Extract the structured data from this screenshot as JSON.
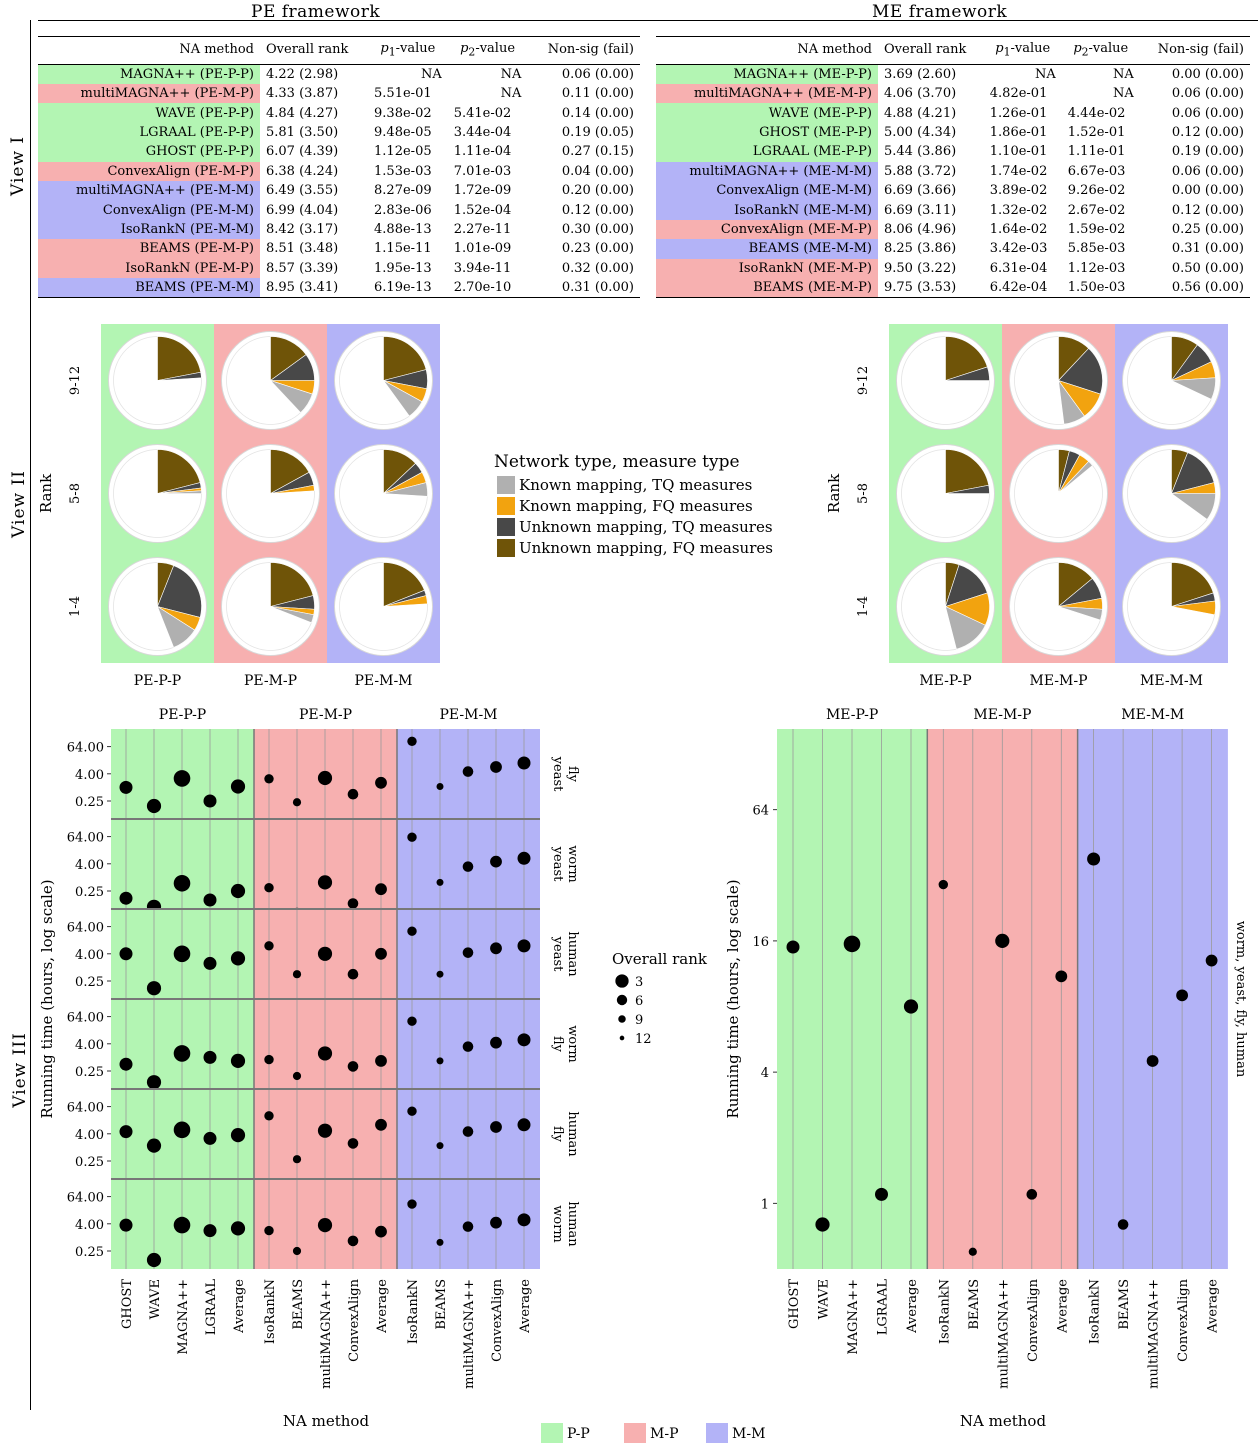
{
  "frameworks": {
    "left": "PE framework",
    "right": "ME framework"
  },
  "view_labels": [
    "View I",
    "View II",
    "View III"
  ],
  "table_columns": [
    "NA method",
    "Overall rank",
    "p1-value",
    "p2-value",
    "Non-sig (fail)"
  ],
  "colors": {
    "P-P": "#b3f5b3",
    "M-P": "#f7b0b0",
    "M-M": "#b3b3f7",
    "known_tq": "#b0b0b0",
    "known_fq": "#f2a30f",
    "unknown_tq": "#484848",
    "unknown_fq": "#6f5408"
  },
  "pe_table": [
    {
      "method": "MAGNA++ (PE-P-P)",
      "rank": "4.22 (2.98)",
      "p1": "NA",
      "p2": "NA",
      "nonsig": "0.06 (0.00)",
      "group": "P-P"
    },
    {
      "method": "multiMAGNA++ (PE-M-P)",
      "rank": "4.33 (3.87)",
      "p1": "5.51e-01",
      "p2": "NA",
      "nonsig": "0.11 (0.00)",
      "group": "M-P"
    },
    {
      "method": "WAVE (PE-P-P)",
      "rank": "4.84 (4.27)",
      "p1": "9.38e-02",
      "p2": "5.41e-02",
      "nonsig": "0.14 (0.00)",
      "group": "P-P"
    },
    {
      "method": "LGRAAL (PE-P-P)",
      "rank": "5.81 (3.50)",
      "p1": "9.48e-05",
      "p2": "3.44e-04",
      "nonsig": "0.19 (0.05)",
      "group": "P-P"
    },
    {
      "method": "GHOST (PE-P-P)",
      "rank": "6.07 (4.39)",
      "p1": "1.12e-05",
      "p2": "1.11e-04",
      "nonsig": "0.27 (0.15)",
      "group": "P-P"
    },
    {
      "method": "ConvexAlign (PE-M-P)",
      "rank": "6.38 (4.24)",
      "p1": "1.53e-03",
      "p2": "7.01e-03",
      "nonsig": "0.04 (0.00)",
      "group": "M-P"
    },
    {
      "method": "multiMAGNA++ (PE-M-M)",
      "rank": "6.49 (3.55)",
      "p1": "8.27e-09",
      "p2": "1.72e-09",
      "nonsig": "0.20 (0.00)",
      "group": "M-M"
    },
    {
      "method": "ConvexAlign (PE-M-M)",
      "rank": "6.99 (4.04)",
      "p1": "2.83e-06",
      "p2": "1.52e-04",
      "nonsig": "0.12 (0.00)",
      "group": "M-M"
    },
    {
      "method": "IsoRankN (PE-M-M)",
      "rank": "8.42 (3.17)",
      "p1": "4.88e-13",
      "p2": "2.27e-11",
      "nonsig": "0.30 (0.00)",
      "group": "M-M"
    },
    {
      "method": "BEAMS (PE-M-P)",
      "rank": "8.51 (3.48)",
      "p1": "1.15e-11",
      "p2": "1.01e-09",
      "nonsig": "0.23 (0.00)",
      "group": "M-P"
    },
    {
      "method": "IsoRankN (PE-M-P)",
      "rank": "8.57 (3.39)",
      "p1": "1.95e-13",
      "p2": "3.94e-11",
      "nonsig": "0.32 (0.00)",
      "group": "M-P"
    },
    {
      "method": "BEAMS (PE-M-M)",
      "rank": "8.95 (3.41)",
      "p1": "6.19e-13",
      "p2": "2.70e-10",
      "nonsig": "0.31 (0.00)",
      "group": "M-M"
    }
  ],
  "me_table": [
    {
      "method": "MAGNA++ (ME-P-P)",
      "rank": "3.69 (2.60)",
      "p1": "NA",
      "p2": "NA",
      "nonsig": "0.00 (0.00)",
      "group": "P-P"
    },
    {
      "method": "multiMAGNA++ (ME-M-P)",
      "rank": "4.06 (3.70)",
      "p1": "4.82e-01",
      "p2": "NA",
      "nonsig": "0.06 (0.00)",
      "group": "M-P"
    },
    {
      "method": "WAVE (ME-P-P)",
      "rank": "4.88 (4.21)",
      "p1": "1.26e-01",
      "p2": "4.44e-02",
      "nonsig": "0.06 (0.00)",
      "group": "P-P"
    },
    {
      "method": "GHOST (ME-P-P)",
      "rank": "5.00 (4.34)",
      "p1": "1.86e-01",
      "p2": "1.52e-01",
      "nonsig": "0.12 (0.00)",
      "group": "P-P"
    },
    {
      "method": "LGRAAL (ME-P-P)",
      "rank": "5.44 (3.86)",
      "p1": "1.10e-01",
      "p2": "1.11e-01",
      "nonsig": "0.19 (0.00)",
      "group": "P-P"
    },
    {
      "method": "multiMAGNA++ (ME-M-M)",
      "rank": "5.88 (3.72)",
      "p1": "1.74e-02",
      "p2": "6.67e-03",
      "nonsig": "0.06 (0.00)",
      "group": "M-M"
    },
    {
      "method": "ConvexAlign (ME-M-M)",
      "rank": "6.69 (3.66)",
      "p1": "3.89e-02",
      "p2": "9.26e-02",
      "nonsig": "0.00 (0.00)",
      "group": "M-M"
    },
    {
      "method": "IsoRankN (ME-M-M)",
      "rank": "6.69 (3.11)",
      "p1": "1.32e-02",
      "p2": "2.67e-02",
      "nonsig": "0.12 (0.00)",
      "group": "M-M"
    },
    {
      "method": "ConvexAlign (ME-M-P)",
      "rank": "8.06 (4.96)",
      "p1": "1.64e-02",
      "p2": "1.59e-02",
      "nonsig": "0.25 (0.00)",
      "group": "M-P"
    },
    {
      "method": "BEAMS (ME-M-M)",
      "rank": "8.25 (3.86)",
      "p1": "3.42e-03",
      "p2": "5.85e-03",
      "nonsig": "0.31 (0.00)",
      "group": "M-M"
    },
    {
      "method": "IsoRankN (ME-M-P)",
      "rank": "9.50 (3.22)",
      "p1": "6.31e-04",
      "p2": "1.12e-03",
      "nonsig": "0.50 (0.00)",
      "group": "M-P"
    },
    {
      "method": "BEAMS (ME-M-P)",
      "rank": "9.75 (3.53)",
      "p1": "6.42e-04",
      "p2": "1.50e-03",
      "nonsig": "0.56 (0.00)",
      "group": "M-P"
    }
  ],
  "chart_data": [
    {
      "type": "pie",
      "panel": "View II PE framework",
      "ylabel": "Rank",
      "rows": [
        "9-12",
        "5-8",
        "1-4"
      ],
      "columns": [
        "PE-P-P",
        "PE-M-P",
        "PE-M-M"
      ],
      "slice_order": [
        "Unknown mapping, FQ measures",
        "Unknown mapping, TQ measures",
        "Known mapping, FQ measures",
        "Known mapping, TQ measures"
      ],
      "fractions": {
        "9-12": {
          "PE-P-P": [
            0.22,
            0.02,
            0.0,
            0.0
          ],
          "PE-M-P": [
            0.15,
            0.1,
            0.05,
            0.08
          ],
          "PE-M-M": [
            0.21,
            0.07,
            0.05,
            0.07
          ]
        },
        "5-8": {
          "PE-P-P": [
            0.21,
            0.02,
            0.01,
            0.01
          ],
          "PE-M-P": [
            0.17,
            0.05,
            0.02,
            0.0
          ],
          "PE-M-M": [
            0.13,
            0.04,
            0.04,
            0.05
          ]
        },
        "1-4": {
          "PE-P-P": [
            0.06,
            0.23,
            0.05,
            0.1
          ],
          "PE-M-P": [
            0.21,
            0.05,
            0.02,
            0.03
          ],
          "PE-M-M": [
            0.19,
            0.02,
            0.03,
            0.0
          ]
        }
      }
    },
    {
      "type": "pie",
      "panel": "View II ME framework",
      "ylabel": "Rank",
      "rows": [
        "9-12",
        "5-8",
        "1-4"
      ],
      "columns": [
        "ME-P-P",
        "ME-M-P",
        "ME-M-M"
      ],
      "slice_order": [
        "Unknown mapping, FQ measures",
        "Unknown mapping, TQ measures",
        "Known mapping, FQ measures",
        "Known mapping, TQ measures"
      ],
      "fractions": {
        "9-12": {
          "ME-P-P": [
            0.2,
            0.05,
            0.0,
            0.0
          ],
          "ME-M-P": [
            0.12,
            0.18,
            0.1,
            0.08
          ],
          "ME-M-M": [
            0.1,
            0.08,
            0.06,
            0.08
          ]
        },
        "5-8": {
          "ME-P-P": [
            0.22,
            0.03,
            0.0,
            0.0
          ],
          "ME-M-P": [
            0.04,
            0.04,
            0.04,
            0.02
          ],
          "ME-M-M": [
            0.06,
            0.15,
            0.04,
            0.1
          ]
        },
        "1-4": {
          "ME-P-P": [
            0.05,
            0.15,
            0.12,
            0.14
          ],
          "ME-M-P": [
            0.14,
            0.08,
            0.04,
            0.04
          ],
          "ME-M-M": [
            0.2,
            0.03,
            0.05,
            0.0
          ]
        }
      }
    },
    {
      "type": "scatter",
      "panel": "View III PE framework",
      "xlabel": "NA method",
      "ylabel": "Running time (hours, log scale)",
      "yscale": "log2",
      "yticks": [
        0.25,
        4,
        64
      ],
      "ytick_labels": [
        "0.25",
        "4.00",
        "64.00"
      ],
      "ylim": [
        0.06,
        256
      ],
      "groups": [
        {
          "label": "PE-P-P",
          "color_key": "P-P",
          "methods": [
            "GHOST",
            "WAVE",
            "MAGNA++",
            "LGRAAL",
            "Average"
          ]
        },
        {
          "label": "PE-M-P",
          "color_key": "M-P",
          "methods": [
            "IsoRankN",
            "BEAMS",
            "multiMAGNA++",
            "ConvexAlign",
            "Average"
          ]
        },
        {
          "label": "PE-M-M",
          "color_key": "M-M",
          "methods": [
            "IsoRankN",
            "BEAMS",
            "multiMAGNA++",
            "ConvexAlign",
            "Average"
          ]
        }
      ],
      "facets": [
        {
          "label": "yeast fly",
          "values": [
            [
              1.0,
              0.15,
              2.5,
              0.25,
              1.1
            ],
            [
              2.4,
              0.22,
              2.6,
              0.5,
              1.6
            ],
            [
              110,
              1.1,
              5.0,
              8.0,
              12
            ]
          ],
          "ranks": [
            [
              6,
              5,
              3,
              6,
              5
            ],
            [
              9,
              10,
              5,
              8,
              7
            ],
            [
              9,
              11,
              8,
              7,
              6
            ]
          ]
        },
        {
          "label": "yeast worm",
          "values": [
            [
              0.12,
              0.05,
              0.55,
              0.1,
              0.25
            ],
            [
              0.35,
              0.03,
              0.6,
              0.07,
              0.3
            ],
            [
              60,
              0.6,
              3.0,
              5.0,
              7.0
            ]
          ],
          "ranks": [
            [
              6,
              5,
              3,
              6,
              5
            ],
            [
              9,
              10,
              5,
              8,
              7
            ],
            [
              9,
              11,
              8,
              7,
              6
            ]
          ]
        },
        {
          "label": "yeast human",
          "values": [
            [
              4.0,
              0.12,
              4.0,
              1.5,
              2.5
            ],
            [
              9.0,
              0.5,
              4.0,
              0.5,
              4.0
            ],
            [
              40,
              0.5,
              4.5,
              7.0,
              9.0
            ]
          ],
          "ranks": [
            [
              6,
              5,
              3,
              6,
              5
            ],
            [
              9,
              10,
              5,
              8,
              7
            ],
            [
              9,
              11,
              8,
              7,
              6
            ]
          ]
        },
        {
          "label": "fly worm",
          "values": [
            [
              0.5,
              0.08,
              1.5,
              1.0,
              0.7
            ],
            [
              0.8,
              0.15,
              1.5,
              0.4,
              0.7
            ],
            [
              40,
              0.7,
              3.0,
              4.5,
              6.0
            ]
          ],
          "ranks": [
            [
              6,
              5,
              3,
              6,
              5
            ],
            [
              9,
              10,
              5,
              8,
              7
            ],
            [
              9,
              11,
              8,
              7,
              6
            ]
          ]
        },
        {
          "label": "fly human",
          "values": [
            [
              5.0,
              1.2,
              6.0,
              2.5,
              3.5
            ],
            [
              25,
              0.3,
              5.5,
              1.5,
              10
            ],
            [
              40,
              1.2,
              5.0,
              8.0,
              10
            ]
          ],
          "ranks": [
            [
              6,
              5,
              3,
              6,
              5
            ],
            [
              9,
              10,
              5,
              8,
              7
            ],
            [
              9,
              11,
              8,
              7,
              6
            ]
          ]
        },
        {
          "label": "worm human",
          "values": [
            [
              3.5,
              0.1,
              3.5,
              2.0,
              2.5
            ],
            [
              2.0,
              0.25,
              3.5,
              0.7,
              1.8
            ],
            [
              30,
              0.6,
              3.0,
              4.5,
              6.0
            ]
          ],
          "ranks": [
            [
              6,
              5,
              3,
              6,
              5
            ],
            [
              9,
              10,
              5,
              8,
              7
            ],
            [
              9,
              11,
              8,
              7,
              6
            ]
          ]
        }
      ],
      "size_legend": {
        "title": "Overall rank",
        "ranks": [
          3,
          6,
          9,
          12
        ]
      }
    },
    {
      "type": "scatter",
      "panel": "View III ME framework",
      "xlabel": "NA method",
      "ylabel": "Running time (hours, log scale)",
      "yscale": "log2",
      "yticks": [
        1,
        4,
        16,
        64
      ],
      "ytick_labels": [
        "1",
        "4",
        "16",
        "64"
      ],
      "ylim": [
        0.5,
        150
      ],
      "facet_label": "worm, yeast, fly, human",
      "groups": [
        {
          "label": "ME-P-P",
          "color_key": "P-P",
          "methods": [
            "GHOST",
            "WAVE",
            "MAGNA++",
            "LGRAAL",
            "Average"
          ],
          "values": [
            15,
            0.8,
            15.5,
            1.1,
            8
          ],
          "ranks": [
            6,
            5,
            3,
            6,
            5
          ]
        },
        {
          "label": "ME-M-P",
          "color_key": "M-P",
          "methods": [
            "IsoRankN",
            "BEAMS",
            "multiMAGNA++",
            "ConvexAlign",
            "Average"
          ],
          "values": [
            29,
            0.6,
            16,
            1.1,
            11
          ],
          "ranks": [
            9,
            10,
            5,
            8,
            7
          ]
        },
        {
          "label": "ME-M-M",
          "color_key": "M-M",
          "methods": [
            "IsoRankN",
            "BEAMS",
            "multiMAGNA++",
            "ConvexAlign",
            "Average"
          ],
          "values": [
            38,
            0.8,
            4.5,
            9,
            13
          ],
          "ranks": [
            6,
            8,
            7,
            7,
            7
          ]
        }
      ]
    }
  ],
  "legend": {
    "pie_title": "Network type, measure type",
    "pie_items": [
      {
        "label": "Known mapping, TQ measures",
        "color_key": "known_tq"
      },
      {
        "label": "Known mapping, FQ measures",
        "color_key": "known_fq"
      },
      {
        "label": "Unknown mapping, TQ measures",
        "color_key": "unknown_tq"
      },
      {
        "label": "Unknown mapping, FQ measures",
        "color_key": "unknown_fq"
      }
    ],
    "group_items": [
      {
        "label": "P-P",
        "color_key": "P-P"
      },
      {
        "label": "M-P",
        "color_key": "M-P"
      },
      {
        "label": "M-M",
        "color_key": "M-M"
      }
    ]
  }
}
